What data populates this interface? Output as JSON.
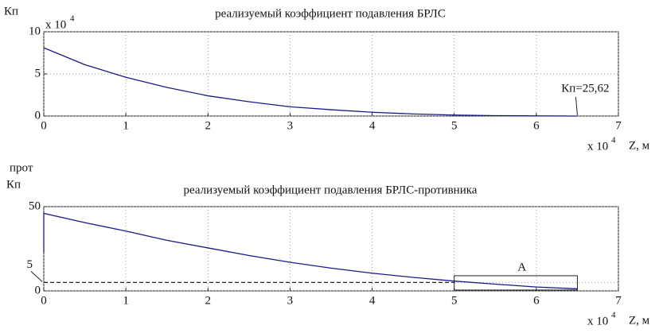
{
  "chart_data": [
    {
      "type": "line",
      "title": "реализуемый коэффициент подавления БРЛС",
      "y_label": "Кп",
      "y_multiplier": "x 10",
      "y_multiplier_exp": "4",
      "x_label": "Z, м",
      "x_multiplier": "x 10",
      "x_multiplier_exp": "4",
      "x": [
        0,
        0.5,
        1,
        1.5,
        2,
        2.5,
        3,
        3.5,
        4,
        4.5,
        5,
        5.5,
        6,
        6.5
      ],
      "series": [
        {
          "color": "#1a1a8c",
          "values": [
            8.1,
            6.1,
            4.6,
            3.4,
            2.4,
            1.7,
            1.1,
            0.75,
            0.45,
            0.25,
            0.12,
            0.05,
            0.02,
            0.0026
          ]
        }
      ],
      "xlim": [
        0,
        7
      ],
      "ylim": [
        0,
        10
      ],
      "xticks": [
        0,
        1,
        2,
        3,
        4,
        5,
        6,
        7
      ],
      "yticks": [
        0,
        5,
        10
      ],
      "grid": true,
      "annotation": "Кп=25,62"
    },
    {
      "type": "line",
      "title": "реализуемый коэффициент подавления БРЛС-противника",
      "y_label": "Кп",
      "y_label_sup": "прот",
      "x_label": "Z, м",
      "x_multiplier": "x 10",
      "x_multiplier_exp": "4",
      "x": [
        0,
        0,
        0.5,
        1,
        1.5,
        2,
        2.5,
        3,
        3.5,
        4,
        4.5,
        5,
        5.5,
        6,
        6.5
      ],
      "series": [
        {
          "color": "#1a1a8c",
          "values": [
            23,
            46,
            40.5,
            35.5,
            30,
            25.5,
            21,
            17,
            13.5,
            10.5,
            8,
            5.8,
            4,
            2.3,
            1.2
          ]
        }
      ],
      "xlim": [
        0,
        7
      ],
      "ylim": [
        0,
        50
      ],
      "xticks": [
        0,
        1,
        2,
        3,
        4,
        5,
        6,
        7
      ],
      "yticks": [
        0,
        5,
        50
      ],
      "grid": true,
      "threshold": {
        "value": 5,
        "x_end": 5
      },
      "box": {
        "label": "A",
        "x": [
          5,
          6.5
        ],
        "y": [
          0.5,
          9
        ]
      }
    }
  ]
}
